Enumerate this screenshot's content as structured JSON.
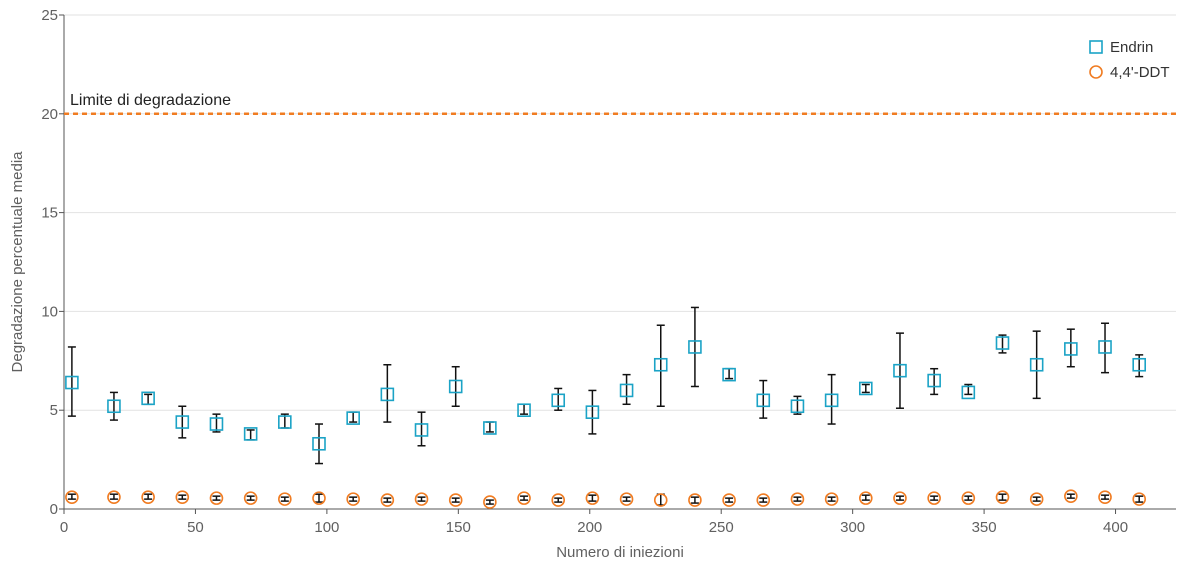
{
  "chart_data": {
    "type": "scatter",
    "xlabel": "Numero di iniezioni",
    "ylabel": "Degradazione percentuale media",
    "xlim": [
      0,
      423
    ],
    "ylim": [
      0,
      25
    ],
    "xticks": [
      0,
      50,
      100,
      150,
      200,
      250,
      300,
      350,
      400
    ],
    "yticks": [
      0,
      5,
      10,
      15,
      20,
      25
    ],
    "grid": "horizontal",
    "legend_position": "top-right",
    "reference_line": {
      "label": "Limite di degradazione",
      "y": 20,
      "color": "#f07c22"
    },
    "series": [
      {
        "name": "Endrin",
        "marker": "square",
        "color": "#1ba3c6",
        "points": [
          {
            "x": 3,
            "y": 6.4,
            "lo": 4.7,
            "hi": 8.2
          },
          {
            "x": 19,
            "y": 5.2,
            "lo": 4.5,
            "hi": 5.9
          },
          {
            "x": 32,
            "y": 5.6,
            "lo": 5.3,
            "hi": 5.8
          },
          {
            "x": 45,
            "y": 4.4,
            "lo": 3.6,
            "hi": 5.2
          },
          {
            "x": 58,
            "y": 4.3,
            "lo": 3.9,
            "hi": 4.8
          },
          {
            "x": 71,
            "y": 3.8,
            "lo": 3.5,
            "hi": 4.0
          },
          {
            "x": 84,
            "y": 4.4,
            "lo": 4.1,
            "hi": 4.8
          },
          {
            "x": 97,
            "y": 3.3,
            "lo": 2.3,
            "hi": 4.3
          },
          {
            "x": 110,
            "y": 4.6,
            "lo": 4.4,
            "hi": 4.9
          },
          {
            "x": 123,
            "y": 5.8,
            "lo": 4.4,
            "hi": 7.3
          },
          {
            "x": 136,
            "y": 4.0,
            "lo": 3.2,
            "hi": 4.9
          },
          {
            "x": 149,
            "y": 6.2,
            "lo": 5.2,
            "hi": 7.2
          },
          {
            "x": 162,
            "y": 4.1,
            "lo": 3.9,
            "hi": 4.4
          },
          {
            "x": 175,
            "y": 5.0,
            "lo": 4.8,
            "hi": 5.3
          },
          {
            "x": 188,
            "y": 5.5,
            "lo": 5.0,
            "hi": 6.1
          },
          {
            "x": 201,
            "y": 4.9,
            "lo": 3.8,
            "hi": 6.0
          },
          {
            "x": 214,
            "y": 6.0,
            "lo": 5.3,
            "hi": 6.8
          },
          {
            "x": 227,
            "y": 7.3,
            "lo": 5.2,
            "hi": 9.3
          },
          {
            "x": 240,
            "y": 8.2,
            "lo": 6.2,
            "hi": 10.2
          },
          {
            "x": 253,
            "y": 6.8,
            "lo": 6.6,
            "hi": 7.1
          },
          {
            "x": 266,
            "y": 5.5,
            "lo": 4.6,
            "hi": 6.5
          },
          {
            "x": 279,
            "y": 5.2,
            "lo": 4.8,
            "hi": 5.7
          },
          {
            "x": 292,
            "y": 5.5,
            "lo": 4.3,
            "hi": 6.8
          },
          {
            "x": 305,
            "y": 6.1,
            "lo": 5.9,
            "hi": 6.3
          },
          {
            "x": 318,
            "y": 7.0,
            "lo": 5.1,
            "hi": 8.9
          },
          {
            "x": 331,
            "y": 6.5,
            "lo": 5.8,
            "hi": 7.1
          },
          {
            "x": 344,
            "y": 5.9,
            "lo": 5.8,
            "hi": 6.3
          },
          {
            "x": 357,
            "y": 8.4,
            "lo": 7.9,
            "hi": 8.8
          },
          {
            "x": 370,
            "y": 7.3,
            "lo": 5.6,
            "hi": 9.0
          },
          {
            "x": 383,
            "y": 8.1,
            "lo": 7.2,
            "hi": 9.1
          },
          {
            "x": 396,
            "y": 8.2,
            "lo": 6.9,
            "hi": 9.4
          },
          {
            "x": 409,
            "y": 7.3,
            "lo": 6.7,
            "hi": 7.8
          }
        ]
      },
      {
        "name": "4,4'-DDT",
        "marker": "circle",
        "color": "#f07c22",
        "points": [
          {
            "x": 3,
            "y": 0.6,
            "lo": 0.5,
            "hi": 0.75
          },
          {
            "x": 19,
            "y": 0.6,
            "lo": 0.5,
            "hi": 0.75
          },
          {
            "x": 32,
            "y": 0.6,
            "lo": 0.5,
            "hi": 0.75
          },
          {
            "x": 45,
            "y": 0.6,
            "lo": 0.5,
            "hi": 0.7
          },
          {
            "x": 58,
            "y": 0.55,
            "lo": 0.45,
            "hi": 0.65
          },
          {
            "x": 71,
            "y": 0.55,
            "lo": 0.45,
            "hi": 0.65
          },
          {
            "x": 84,
            "y": 0.5,
            "lo": 0.4,
            "hi": 0.6
          },
          {
            "x": 97,
            "y": 0.55,
            "lo": 0.35,
            "hi": 0.75
          },
          {
            "x": 110,
            "y": 0.5,
            "lo": 0.4,
            "hi": 0.6
          },
          {
            "x": 123,
            "y": 0.45,
            "lo": 0.35,
            "hi": 0.55
          },
          {
            "x": 136,
            "y": 0.5,
            "lo": 0.4,
            "hi": 0.6
          },
          {
            "x": 149,
            "y": 0.45,
            "lo": 0.35,
            "hi": 0.55
          },
          {
            "x": 162,
            "y": 0.35,
            "lo": 0.25,
            "hi": 0.45
          },
          {
            "x": 175,
            "y": 0.55,
            "lo": 0.45,
            "hi": 0.65
          },
          {
            "x": 188,
            "y": 0.45,
            "lo": 0.35,
            "hi": 0.55
          },
          {
            "x": 201,
            "y": 0.55,
            "lo": 0.4,
            "hi": 0.7
          },
          {
            "x": 214,
            "y": 0.5,
            "lo": 0.4,
            "hi": 0.6
          },
          {
            "x": 227,
            "y": 0.45,
            "lo": 0.2,
            "hi": 0.75
          },
          {
            "x": 240,
            "y": 0.45,
            "lo": 0.3,
            "hi": 0.6
          },
          {
            "x": 253,
            "y": 0.45,
            "lo": 0.35,
            "hi": 0.55
          },
          {
            "x": 266,
            "y": 0.45,
            "lo": 0.35,
            "hi": 0.55
          },
          {
            "x": 279,
            "y": 0.5,
            "lo": 0.4,
            "hi": 0.6
          },
          {
            "x": 292,
            "y": 0.5,
            "lo": 0.4,
            "hi": 0.6
          },
          {
            "x": 305,
            "y": 0.55,
            "lo": 0.45,
            "hi": 0.7
          },
          {
            "x": 318,
            "y": 0.55,
            "lo": 0.45,
            "hi": 0.65
          },
          {
            "x": 331,
            "y": 0.55,
            "lo": 0.45,
            "hi": 0.65
          },
          {
            "x": 344,
            "y": 0.55,
            "lo": 0.45,
            "hi": 0.65
          },
          {
            "x": 357,
            "y": 0.6,
            "lo": 0.45,
            "hi": 0.75
          },
          {
            "x": 370,
            "y": 0.5,
            "lo": 0.4,
            "hi": 0.6
          },
          {
            "x": 383,
            "y": 0.65,
            "lo": 0.55,
            "hi": 0.75
          },
          {
            "x": 396,
            "y": 0.6,
            "lo": 0.5,
            "hi": 0.7
          },
          {
            "x": 409,
            "y": 0.5,
            "lo": 0.35,
            "hi": 0.65
          }
        ]
      }
    ]
  }
}
